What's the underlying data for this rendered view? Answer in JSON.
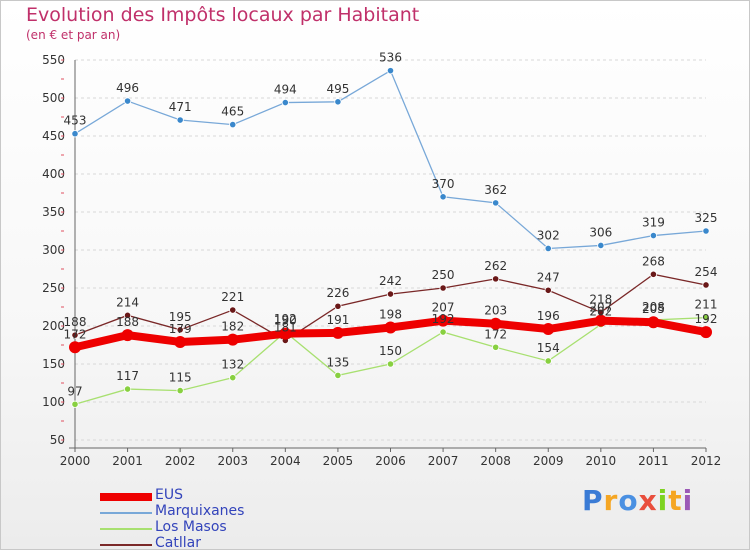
{
  "title": "Evolution des Impôts locaux par Habitant",
  "subtitle": "(en € et par an)",
  "logo": {
    "text": "Proxiti",
    "colors": [
      "#3a7bd5",
      "#f5a623",
      "#4a90e2",
      "#e94e3c",
      "#7ed321",
      "#f5a623",
      "#9b59b6"
    ]
  },
  "chart_data": {
    "type": "line",
    "title": "Evolution des Impôts locaux par Habitant",
    "subtitle": "(en € et par an)",
    "xlabel": "",
    "ylabel": "",
    "ylim": [
      50,
      550
    ],
    "yticks": [
      50,
      100,
      150,
      200,
      250,
      300,
      350,
      400,
      450,
      500,
      550
    ],
    "grid": "horizontal",
    "legend_position": "bottom-left",
    "x": [
      "2000",
      "2001",
      "2002",
      "2003",
      "2004",
      "2005",
      "2006",
      "2007",
      "2008",
      "2009",
      "2010",
      "2011",
      "2012"
    ],
    "series": [
      {
        "name": "EUS",
        "color": "#ee0000",
        "marker": "#ee0000",
        "thick": true,
        "values": [
          172,
          188,
          179,
          182,
          190,
          191,
          198,
          207,
          203,
          196,
          207,
          205,
          192
        ],
        "labels": [
          "172",
          "188",
          "179",
          "182",
          "190",
          "191",
          "198",
          "207",
          "203",
          "196",
          "207",
          "205",
          "192"
        ]
      },
      {
        "name": "Marquixanes",
        "color": "#78a8d8",
        "marker": "#3a88cc",
        "thick": false,
        "values": [
          453,
          496,
          471,
          465,
          494,
          495,
          536,
          370,
          362,
          302,
          306,
          319,
          325
        ],
        "labels": [
          "453",
          "496",
          "471",
          "465",
          "494",
          "495",
          "536",
          "370",
          "362",
          "302",
          "306",
          "319",
          "325"
        ]
      },
      {
        "name": "Los Masos",
        "color": "#a8e070",
        "marker": "#88d040",
        "thick": false,
        "values": [
          97,
          117,
          115,
          132,
          192,
          135,
          150,
          192,
          172,
          154,
          202,
          208,
          211
        ],
        "labels": [
          "97",
          "117",
          "115",
          "132",
          "192",
          "135",
          "150",
          "192",
          "172",
          "154",
          "202",
          "208",
          "211"
        ]
      },
      {
        "name": "Catllar",
        "color": "#7a2828",
        "marker": "#6a1818",
        "thick": false,
        "values": [
          188,
          214,
          195,
          221,
          181,
          226,
          242,
          250,
          262,
          247,
          218,
          268,
          254
        ],
        "labels": [
          "188",
          "214",
          "195",
          "221",
          "181",
          "226",
          "242",
          "250",
          "262",
          "247",
          "218",
          "268",
          "254"
        ]
      }
    ]
  }
}
